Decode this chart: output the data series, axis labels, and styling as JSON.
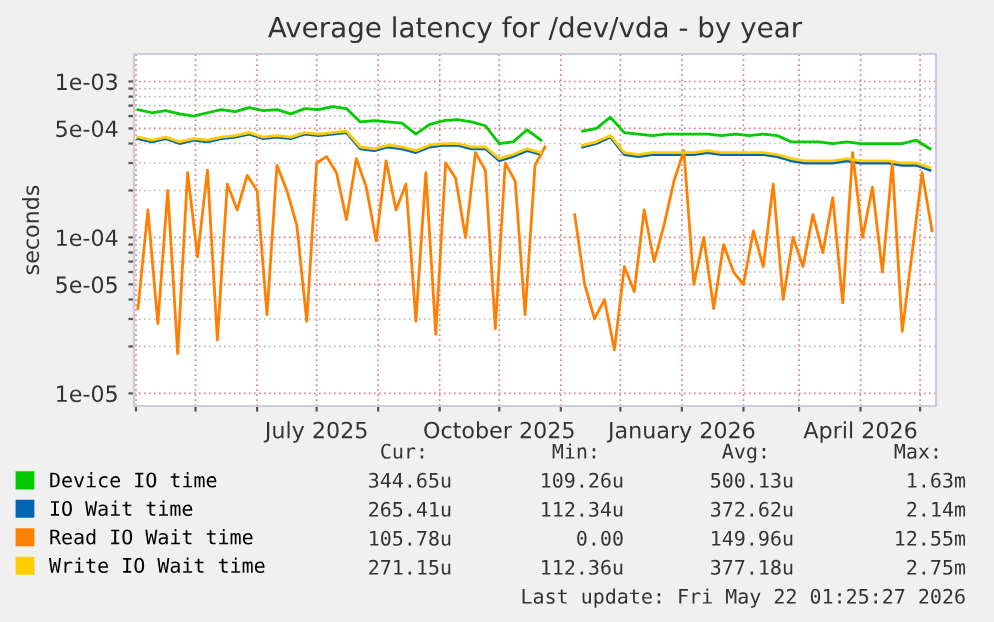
{
  "chart_data": {
    "type": "line",
    "title": "Average latency for /dev/vda - by year",
    "ylabel": "seconds",
    "log": "y",
    "grid": true,
    "legend": "bottom left",
    "marker": "none",
    "line_style": "solid",
    "xlim": [
      "2025-03-31",
      "2026-05-09"
    ],
    "xticks": [
      {
        "value": "2025-04-01",
        "label": null
      },
      {
        "value": "2025-05-01",
        "label": null
      },
      {
        "value": "2025-06-01",
        "label": null
      },
      {
        "value": "2025-07-01",
        "label": "July 2025"
      },
      {
        "value": "2025-08-01",
        "label": null
      },
      {
        "value": "2025-09-01",
        "label": null
      },
      {
        "value": "2025-10-01",
        "label": "October 2025"
      },
      {
        "value": "2025-11-01",
        "label": null
      },
      {
        "value": "2025-12-01",
        "label": null
      },
      {
        "value": "2026-01-01",
        "label": "January 2026"
      },
      {
        "value": "2026-02-01",
        "label": null
      },
      {
        "value": "2026-03-01",
        "label": null
      },
      {
        "value": "2026-04-01",
        "label": "April 2026"
      },
      {
        "value": "2026-05-01",
        "label": null
      }
    ],
    "ylim": [
      8.3e-06,
      0.0015
    ],
    "yticks": [
      {
        "value": 1e-05,
        "label": "1e-05"
      },
      {
        "value": 2e-05,
        "label": null
      },
      {
        "value": 3e-05,
        "label": null
      },
      {
        "value": 4e-05,
        "label": null
      },
      {
        "value": 5e-05,
        "label": "5e-05"
      },
      {
        "value": 6e-05,
        "label": null
      },
      {
        "value": 7e-05,
        "label": null
      },
      {
        "value": 8e-05,
        "label": null
      },
      {
        "value": 9e-05,
        "label": null
      },
      {
        "value": 0.0001,
        "label": "1e-04"
      },
      {
        "value": 0.0002,
        "label": null
      },
      {
        "value": 0.0003,
        "label": null
      },
      {
        "value": 0.0004,
        "label": null
      },
      {
        "value": 0.0005,
        "label": "5e-04"
      },
      {
        "value": 0.0006,
        "label": null
      },
      {
        "value": 0.0007,
        "label": null
      },
      {
        "value": 0.0008,
        "label": null
      },
      {
        "value": 0.0009,
        "label": null
      },
      {
        "value": 0.001,
        "label": "1e-03"
      }
    ],
    "x": [
      "2025-04-02",
      "2025-04-09",
      "2025-04-16",
      "2025-04-23",
      "2025-04-30",
      "2025-05-07",
      "2025-05-14",
      "2025-05-21",
      "2025-05-28",
      "2025-06-04",
      "2025-06-11",
      "2025-06-18",
      "2025-06-25",
      "2025-07-02",
      "2025-07-09",
      "2025-07-16",
      "2025-07-23",
      "2025-07-30",
      "2025-08-06",
      "2025-08-13",
      "2025-08-20",
      "2025-08-27",
      "2025-09-03",
      "2025-09-10",
      "2025-09-17",
      "2025-09-24",
      "2025-10-01",
      "2025-10-08",
      "2025-10-15",
      "2025-10-22",
      "2025-10-29",
      "2025-11-05",
      "2025-11-12",
      "2025-11-19",
      "2025-11-26",
      "2025-12-03",
      "2025-12-10",
      "2025-12-17",
      "2025-12-24",
      "2025-12-31",
      "2026-01-07",
      "2026-01-14",
      "2026-01-21",
      "2026-01-28",
      "2026-02-04",
      "2026-02-11",
      "2026-02-18",
      "2026-02-25",
      "2026-03-04",
      "2026-03-11",
      "2026-03-18",
      "2026-03-25",
      "2026-04-01",
      "2026-04-08",
      "2026-04-15",
      "2026-04-22",
      "2026-04-29",
      "2026-05-06"
    ],
    "series": [
      {
        "name": "Device IO time",
        "color": "#00cc00",
        "values": [
          0.00066,
          0.00063,
          0.00065,
          0.00062,
          0.0006,
          0.00063,
          0.00066,
          0.00064,
          0.00068,
          0.00065,
          0.00066,
          0.00062,
          0.00067,
          0.00066,
          0.00069,
          0.00067,
          0.00055,
          0.00056,
          0.00055,
          0.00054,
          0.00046,
          0.00053,
          0.00056,
          0.00057,
          0.00055,
          0.00052,
          0.0004,
          0.00041,
          0.00049,
          0.00042,
          null,
          null,
          0.00048,
          0.0005,
          0.00059,
          0.00047,
          0.00046,
          0.00045,
          0.00046,
          0.00046,
          0.00046,
          0.00046,
          0.00045,
          0.00046,
          0.00045,
          0.00046,
          0.00045,
          0.00041,
          0.00041,
          0.00041,
          0.0004,
          0.00041,
          0.0004,
          0.0004,
          0.0004,
          0.0004,
          0.00042,
          0.00037
        ]
      },
      {
        "name": "IO Wait time",
        "color": "#0066b3",
        "values": [
          0.00043,
          0.00041,
          0.00043,
          0.0004,
          0.00042,
          0.00041,
          0.00043,
          0.00044,
          0.00046,
          0.00043,
          0.00044,
          0.00043,
          0.00046,
          0.00045,
          0.00046,
          0.00047,
          0.00037,
          0.00036,
          0.00038,
          0.00037,
          0.00035,
          0.00038,
          0.00039,
          0.00039,
          0.00037,
          0.00037,
          0.00031,
          0.00033,
          0.00036,
          0.00034,
          null,
          null,
          0.00038,
          0.0004,
          0.00044,
          0.00034,
          0.00033,
          0.00034,
          0.00034,
          0.00034,
          0.00034,
          0.00035,
          0.00034,
          0.00034,
          0.00034,
          0.00034,
          0.00033,
          0.00031,
          0.0003,
          0.0003,
          0.0003,
          0.00031,
          0.0003,
          0.0003,
          0.0003,
          0.00029,
          0.00029,
          0.00027
        ]
      },
      {
        "name": "Read IO Wait time",
        "color": "#ff8000",
        "x": [
          "2025-04-02",
          "2025-04-07",
          "2025-04-12",
          "2025-04-17",
          "2025-04-22",
          "2025-04-27",
          "2025-05-02",
          "2025-05-07",
          "2025-05-12",
          "2025-05-17",
          "2025-05-22",
          "2025-05-27",
          "2025-06-01",
          "2025-06-06",
          "2025-06-11",
          "2025-06-16",
          "2025-06-21",
          "2025-06-26",
          "2025-07-01",
          "2025-07-06",
          "2025-07-11",
          "2025-07-16",
          "2025-07-21",
          "2025-07-26",
          "2025-07-31",
          "2025-08-05",
          "2025-08-10",
          "2025-08-15",
          "2025-08-20",
          "2025-08-25",
          "2025-08-30",
          "2025-09-04",
          "2025-09-09",
          "2025-09-14",
          "2025-09-19",
          "2025-09-24",
          "2025-09-29",
          "2025-10-04",
          "2025-10-09",
          "2025-10-14",
          "2025-10-19",
          "2025-10-24",
          "2025-10-29",
          "2025-11-03",
          "2025-11-08",
          "2025-11-13",
          "2025-11-18",
          "2025-11-23",
          "2025-11-28",
          "2025-12-03",
          "2025-12-08",
          "2025-12-13",
          "2025-12-18",
          "2025-12-23",
          "2025-12-28",
          "2026-01-02",
          "2026-01-07",
          "2026-01-12",
          "2026-01-17",
          "2026-01-22",
          "2026-01-27",
          "2026-02-01",
          "2026-02-06",
          "2026-02-11",
          "2026-02-16",
          "2026-02-21",
          "2026-02-26",
          "2026-03-03",
          "2026-03-08",
          "2026-03-13",
          "2026-03-18",
          "2026-03-23",
          "2026-03-28",
          "2026-04-02",
          "2026-04-07",
          "2026-04-12",
          "2026-04-17",
          "2026-04-22",
          "2026-04-27",
          "2026-05-02",
          "2026-05-07"
        ],
        "values": [
          3.5e-05,
          0.00015,
          2.8e-05,
          0.0002,
          1.8e-05,
          0.00026,
          7.5e-05,
          0.00027,
          2.2e-05,
          0.00022,
          0.00015,
          0.00025,
          0.0002,
          3.2e-05,
          0.00029,
          0.0002,
          0.00012,
          2.9e-05,
          0.0003,
          0.00033,
          0.00026,
          0.00013,
          0.00032,
          0.00021,
          9.5e-05,
          0.00031,
          0.00015,
          0.00022,
          2.9e-05,
          0.00026,
          2.4e-05,
          0.0003,
          0.00024,
          0.0001,
          0.00035,
          0.00027,
          2.6e-05,
          0.0003,
          0.00023,
          3.2e-05,
          0.00029,
          0.00038,
          null,
          null,
          0.00014,
          5e-05,
          3e-05,
          4e-05,
          1.9e-05,
          6.5e-05,
          4.5e-05,
          0.00015,
          7e-05,
          0.00012,
          0.00023,
          0.00036,
          5e-05,
          0.0001,
          3.5e-05,
          9e-05,
          6e-05,
          5e-05,
          0.00011,
          6.5e-05,
          0.00022,
          4e-05,
          0.0001,
          6.5e-05,
          0.00014,
          8e-05,
          0.00018,
          3.8e-05,
          0.00035,
          0.0001,
          0.00021,
          6e-05,
          0.0003,
          2.5e-05,
          8e-05,
          0.00026,
          0.00011
        ]
      },
      {
        "name": "Write IO Wait time",
        "color": "#ffcc00",
        "values": [
          0.00044,
          0.00042,
          0.00044,
          0.00041,
          0.00043,
          0.00042,
          0.00044,
          0.00045,
          0.00047,
          0.00044,
          0.00045,
          0.00044,
          0.00047,
          0.00046,
          0.00047,
          0.00048,
          0.00038,
          0.00037,
          0.00039,
          0.00038,
          0.00036,
          0.00039,
          0.0004,
          0.0004,
          0.00038,
          0.00038,
          0.00032,
          0.00034,
          0.00037,
          0.00035,
          null,
          null,
          0.00039,
          0.00041,
          0.00045,
          0.00035,
          0.00034,
          0.00035,
          0.00035,
          0.00035,
          0.00035,
          0.00036,
          0.00035,
          0.00035,
          0.00035,
          0.00035,
          0.00034,
          0.00032,
          0.00031,
          0.00031,
          0.00031,
          0.00032,
          0.00031,
          0.00031,
          0.00031,
          0.0003,
          0.0003,
          0.00028
        ]
      }
    ],
    "annotations": [
      "Cur:",
      "Min:",
      "Avg:",
      "Max:",
      "344.65u",
      "109.26u",
      "500.13u",
      "1.63m",
      "265.41u",
      "112.34u",
      "372.62u",
      "2.14m",
      "105.78u",
      "0.00",
      "149.96u",
      "12.55m",
      "271.15u",
      "112.36u",
      "377.18u",
      "2.75m",
      "Last update: Fri May 22 01:25:27 2026"
    ]
  }
}
